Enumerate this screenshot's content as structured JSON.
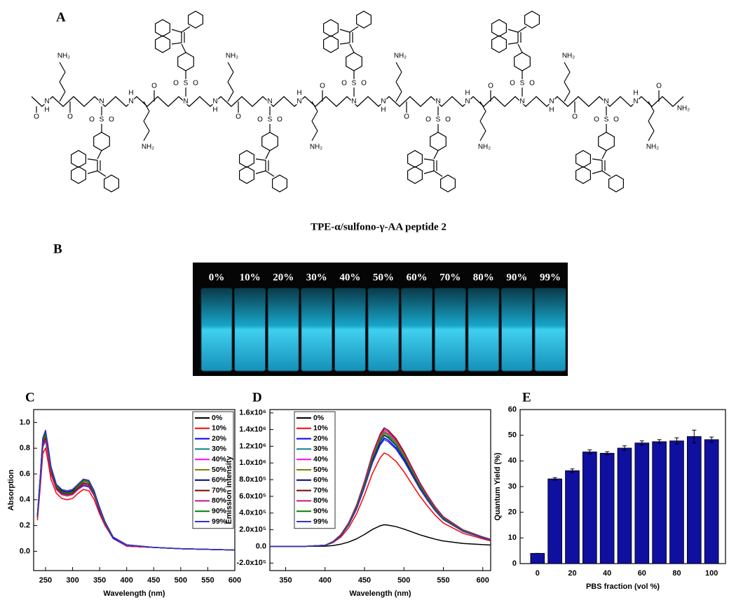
{
  "panel_labels": [
    "A",
    "B",
    "C",
    "D",
    "E"
  ],
  "structure": {
    "caption": "TPE-α/sulfono-γ-AA peptide 2",
    "amine": "NH₂",
    "nitrogen": "N",
    "hydrogen": "H",
    "oxygen": "O",
    "sulfur": "S"
  },
  "photo": {
    "labels": [
      "0%",
      "10%",
      "20%",
      "30%",
      "40%",
      "50%",
      "60%",
      "70%",
      "80%",
      "90%",
      "99%"
    ]
  },
  "chart_data": [
    {
      "type": "line",
      "x_label": "Wavelength (nm)",
      "y_label": "Absorption",
      "legend": "upper right",
      "x": [
        235,
        240,
        245,
        250,
        255,
        260,
        270,
        280,
        290,
        300,
        310,
        320,
        330,
        340,
        350,
        360,
        375,
        400,
        450,
        500,
        600
      ],
      "xlim": [
        228,
        600
      ],
      "ylim": [
        -0.15,
        1.1
      ],
      "xticks": [
        250,
        300,
        350,
        400,
        450,
        500,
        550,
        600
      ],
      "yticks": [
        {
          "value": 0,
          "label": "0.0"
        },
        0.2,
        0.4,
        0.6,
        0.8,
        {
          "value": 1,
          "label": "1.0"
        }
      ],
      "series": [
        {
          "name": "0%",
          "color": "#000000",
          "values": [
            0.28,
            0.57,
            0.88,
            0.93,
            0.8,
            0.65,
            0.52,
            0.47,
            0.46,
            0.47,
            0.52,
            0.56,
            0.55,
            0.46,
            0.34,
            0.23,
            0.11,
            0.05,
            0.03,
            0.02,
            0.01
          ]
        },
        {
          "name": "10%",
          "color": "#ff0000",
          "values": [
            0.24,
            0.49,
            0.76,
            0.8,
            0.69,
            0.56,
            0.45,
            0.41,
            0.4,
            0.41,
            0.45,
            0.48,
            0.47,
            0.4,
            0.29,
            0.2,
            0.1,
            0.04,
            0.03,
            0.02,
            0.01
          ]
        },
        {
          "name": "20%",
          "color": "#0000ff",
          "values": [
            0.26,
            0.52,
            0.81,
            0.86,
            0.74,
            0.6,
            0.48,
            0.44,
            0.43,
            0.44,
            0.48,
            0.51,
            0.5,
            0.43,
            0.31,
            0.21,
            0.1,
            0.04,
            0.03,
            0.02,
            0.01
          ]
        },
        {
          "name": "30%",
          "color": "#008080",
          "values": [
            0.26,
            0.53,
            0.82,
            0.87,
            0.76,
            0.61,
            0.49,
            0.45,
            0.44,
            0.45,
            0.49,
            0.52,
            0.51,
            0.44,
            0.32,
            0.21,
            0.11,
            0.04,
            0.03,
            0.02,
            0.01
          ]
        },
        {
          "name": "40%",
          "color": "#ff00ff",
          "values": [
            0.27,
            0.54,
            0.84,
            0.89,
            0.77,
            0.62,
            0.5,
            0.46,
            0.45,
            0.46,
            0.5,
            0.53,
            0.52,
            0.45,
            0.33,
            0.22,
            0.11,
            0.04,
            0.03,
            0.02,
            0.01
          ]
        },
        {
          "name": "50%",
          "color": "#808000",
          "values": [
            0.27,
            0.55,
            0.85,
            0.9,
            0.78,
            0.63,
            0.5,
            0.46,
            0.45,
            0.46,
            0.5,
            0.54,
            0.53,
            0.45,
            0.33,
            0.22,
            0.11,
            0.045,
            0.03,
            0.02,
            0.01
          ]
        },
        {
          "name": "60%",
          "color": "#000080",
          "values": [
            0.28,
            0.56,
            0.87,
            0.92,
            0.8,
            0.64,
            0.51,
            0.47,
            0.46,
            0.47,
            0.51,
            0.55,
            0.54,
            0.46,
            0.34,
            0.22,
            0.11,
            0.05,
            0.03,
            0.02,
            0.01
          ]
        },
        {
          "name": "70%",
          "color": "#800000",
          "values": [
            0.26,
            0.54,
            0.83,
            0.88,
            0.76,
            0.62,
            0.49,
            0.45,
            0.44,
            0.45,
            0.49,
            0.53,
            0.52,
            0.44,
            0.32,
            0.22,
            0.11,
            0.04,
            0.03,
            0.02,
            0.01
          ]
        },
        {
          "name": "80%",
          "color": "#c71585",
          "values": [
            0.26,
            0.53,
            0.82,
            0.86,
            0.75,
            0.6,
            0.48,
            0.44,
            0.43,
            0.44,
            0.48,
            0.52,
            0.51,
            0.43,
            0.32,
            0.21,
            0.11,
            0.04,
            0.03,
            0.02,
            0.01
          ]
        },
        {
          "name": "90%",
          "color": "#008000",
          "values": [
            0.27,
            0.56,
            0.86,
            0.91,
            0.79,
            0.64,
            0.51,
            0.46,
            0.45,
            0.46,
            0.51,
            0.55,
            0.54,
            0.45,
            0.33,
            0.22,
            0.11,
            0.05,
            0.03,
            0.02,
            0.01
          ]
        },
        {
          "name": "99%",
          "color": "#3333cc",
          "values": [
            0.28,
            0.57,
            0.88,
            0.94,
            0.81,
            0.66,
            0.52,
            0.48,
            0.47,
            0.48,
            0.52,
            0.56,
            0.55,
            0.47,
            0.34,
            0.23,
            0.11,
            0.05,
            0.03,
            0.02,
            0.01
          ]
        }
      ]
    },
    {
      "type": "line",
      "x_label": "Wavelength (nm)",
      "y_label": "Emission intensity",
      "legend": "upper left",
      "x": [
        330,
        350,
        375,
        400,
        410,
        420,
        430,
        440,
        450,
        460,
        470,
        475,
        480,
        490,
        500,
        510,
        520,
        530,
        540,
        550,
        575,
        600,
        610
      ],
      "xlim": [
        330,
        610
      ],
      "ylim": [
        -290000,
        1640000
      ],
      "xticks": [
        350,
        400,
        450,
        500,
        550,
        600
      ],
      "yticks": [
        {
          "value": -200000,
          "label": "-2.0x10⁵"
        },
        {
          "value": 0,
          "label": "0.0"
        },
        {
          "value": 200000,
          "label": "2.0x10⁵"
        },
        {
          "value": 400000,
          "label": "4.0x10⁵"
        },
        {
          "value": 600000,
          "label": "6.0x10⁵"
        },
        {
          "value": 800000,
          "label": "8.0x10⁵"
        },
        {
          "value": 1000000,
          "label": "1.0x10⁶"
        },
        {
          "value": 1200000,
          "label": "1.2x10⁶"
        },
        {
          "value": 1400000,
          "label": "1.4x10⁶"
        },
        {
          "value": 1600000,
          "label": "1.6x10⁶"
        }
      ],
      "series": [
        {
          "name": "0%",
          "color": "#000000",
          "values": [
            0,
            0,
            0,
            3000,
            10000,
            26000,
            52000,
            91000,
            143000,
            203000,
            247000,
            260000,
            255000,
            237000,
            208000,
            174000,
            140000,
            112000,
            86000,
            65000,
            36000,
            21000,
            16000
          ]
        },
        {
          "name": "10%",
          "color": "#ff0000",
          "values": [
            0,
            0,
            0,
            11000,
            45000,
            112000,
            224000,
            392000,
            616000,
            874000,
            1064000,
            1120000,
            1098000,
            1019000,
            896000,
            750000,
            605000,
            482000,
            370000,
            280000,
            157000,
            90000,
            67000
          ]
        },
        {
          "name": "20%",
          "color": "#0000ff",
          "values": [
            0,
            0,
            0,
            13000,
            52000,
            130000,
            260000,
            455000,
            715000,
            1014000,
            1235000,
            1300000,
            1274000,
            1183000,
            1040000,
            871000,
            702000,
            559000,
            429000,
            325000,
            182000,
            104000,
            78000
          ]
        },
        {
          "name": "30%",
          "color": "#008080",
          "values": [
            0,
            0,
            0,
            14000,
            54000,
            136000,
            272000,
            476000,
            748000,
            1061000,
            1292000,
            1360000,
            1333000,
            1238000,
            1088000,
            911000,
            734000,
            585000,
            449000,
            340000,
            190000,
            109000,
            82000
          ]
        },
        {
          "name": "40%",
          "color": "#ff00ff",
          "values": [
            0,
            0,
            0,
            14000,
            55000,
            138000,
            276000,
            483000,
            759000,
            1076000,
            1311000,
            1380000,
            1352000,
            1256000,
            1104000,
            925000,
            745000,
            593000,
            455000,
            345000,
            193000,
            110000,
            83000
          ]
        },
        {
          "name": "50%",
          "color": "#808000",
          "values": [
            0,
            0,
            0,
            14000,
            55000,
            137000,
            274000,
            480000,
            754000,
            1069000,
            1302000,
            1370000,
            1343000,
            1247000,
            1096000,
            918000,
            740000,
            589000,
            452000,
            343000,
            192000,
            110000,
            82000
          ]
        },
        {
          "name": "60%",
          "color": "#000080",
          "values": [
            0,
            0,
            0,
            13000,
            53000,
            133000,
            266000,
            466000,
            732000,
            1037000,
            1264000,
            1330000,
            1303000,
            1210000,
            1064000,
            891000,
            718000,
            572000,
            439000,
            333000,
            186000,
            106000,
            80000
          ]
        },
        {
          "name": "70%",
          "color": "#800000",
          "values": [
            0,
            0,
            0,
            14000,
            57000,
            142000,
            284000,
            497000,
            781000,
            1108000,
            1349000,
            1420000,
            1392000,
            1292000,
            1136000,
            951000,
            767000,
            611000,
            469000,
            355000,
            199000,
            114000,
            85000
          ]
        },
        {
          "name": "80%",
          "color": "#c71585",
          "values": [
            0,
            0,
            0,
            14000,
            56000,
            140000,
            280000,
            490000,
            770000,
            1092000,
            1330000,
            1400000,
            1372000,
            1274000,
            1120000,
            938000,
            756000,
            602000,
            462000,
            350000,
            196000,
            112000,
            84000
          ]
        },
        {
          "name": "90%",
          "color": "#008000",
          "values": [
            0,
            0,
            0,
            13000,
            54000,
            134000,
            268000,
            469000,
            737000,
            1045000,
            1273000,
            1340000,
            1313000,
            1219000,
            1072000,
            898000,
            724000,
            576000,
            442000,
            335000,
            188000,
            107000,
            80000
          ]
        },
        {
          "name": "99%",
          "color": "#3333cc",
          "values": [
            0,
            0,
            0,
            13000,
            51000,
            128000,
            256000,
            448000,
            704000,
            998000,
            1216000,
            1280000,
            1254000,
            1165000,
            1024000,
            858000,
            691000,
            550000,
            422000,
            320000,
            179000,
            102000,
            77000
          ]
        }
      ]
    },
    {
      "type": "bar",
      "x_label": "PBS fraction (vol %)",
      "y_label": "Quantum Yield (%)",
      "color": "#0f0fa0",
      "x": [
        0,
        10,
        20,
        30,
        40,
        50,
        60,
        70,
        80,
        90,
        100
      ],
      "values": [
        4,
        33,
        36.2,
        43.5,
        43,
        45,
        47,
        47.5,
        47.8,
        49.5,
        48.3
      ],
      "errors": [
        0,
        0.5,
        0.7,
        0.8,
        0.6,
        0.9,
        0.8,
        0.8,
        1.2,
        2.5,
        1.0
      ],
      "xlim": [
        -10,
        108
      ],
      "ylim": [
        0,
        60
      ],
      "xticks": [
        0,
        20,
        40,
        60,
        80,
        100
      ],
      "yticks": [
        0,
        10,
        20,
        30,
        40,
        50,
        60
      ]
    }
  ]
}
